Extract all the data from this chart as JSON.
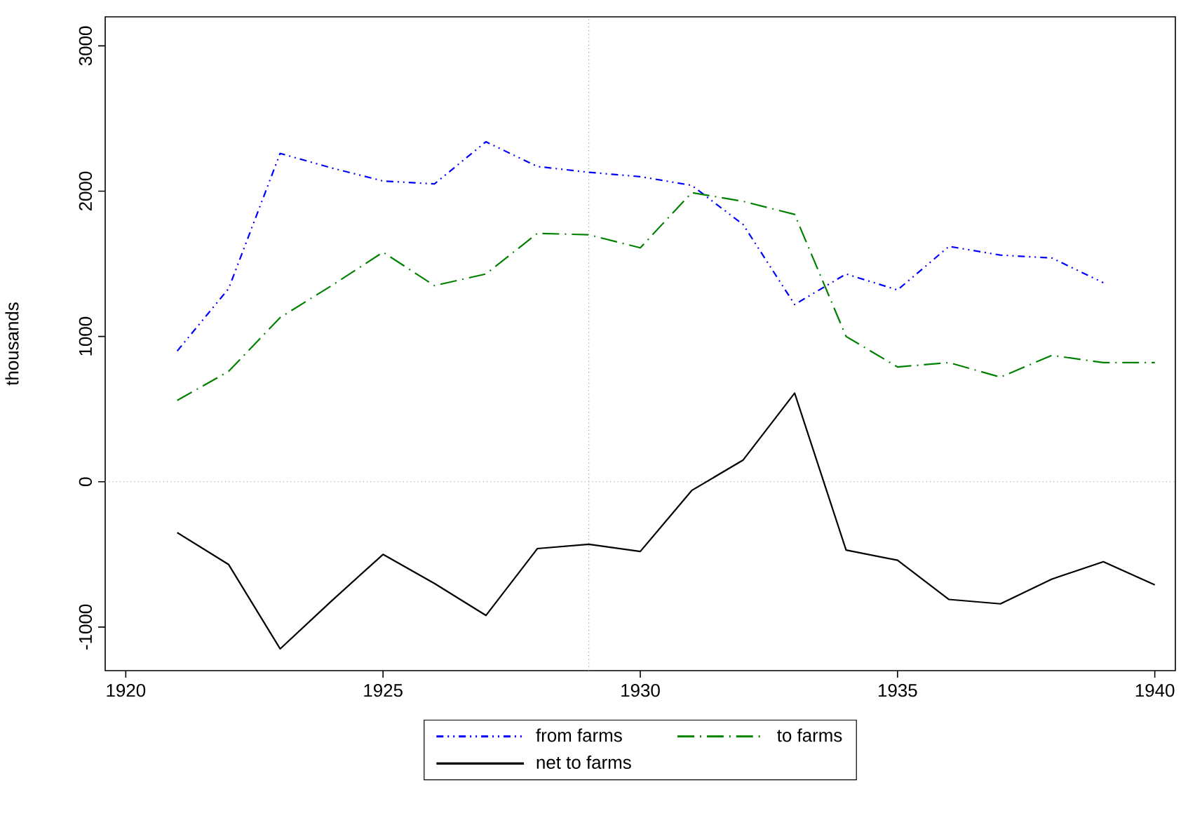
{
  "chart_data": {
    "type": "line",
    "ylabel": "thousands",
    "x": [
      1921,
      1922,
      1923,
      1924,
      1925,
      1926,
      1927,
      1928,
      1929,
      1930,
      1931,
      1932,
      1933,
      1934,
      1935,
      1936,
      1937,
      1938,
      1939,
      1940
    ],
    "series": [
      {
        "name": "from farms",
        "color": "#0000ff",
        "line_style": "dashdotdotted",
        "values": [
          900,
          1330,
          2260,
          2160,
          2070,
          2050,
          2340,
          2170,
          2130,
          2100,
          2040,
          1770,
          1220,
          1430,
          1320,
          1620,
          1560,
          1540,
          1370,
          null
        ]
      },
      {
        "name": "to farms",
        "color": "#008000",
        "line_style": "longdashdotted",
        "values": [
          560,
          760,
          1130,
          1350,
          1580,
          1350,
          1430,
          1710,
          1700,
          1610,
          1990,
          1930,
          1840,
          1000,
          790,
          820,
          720,
          870,
          820,
          820
        ]
      },
      {
        "name": "net to farms",
        "color": "#000000",
        "line_style": "solid",
        "values": [
          -350,
          -570,
          -1150,
          -820,
          -500,
          -700,
          -920,
          -460,
          -430,
          -480,
          -60,
          150,
          610,
          -470,
          -540,
          -810,
          -840,
          -670,
          -550,
          -710
        ]
      }
    ],
    "xlim": [
      1919.6,
      1940.4
    ],
    "ylim": [
      -1300,
      3200
    ],
    "xticks": [
      1920,
      1925,
      1930,
      1935,
      1940
    ],
    "yticks": [
      -1000,
      0,
      1000,
      2000,
      3000
    ],
    "ref_lines": [
      {
        "axis": "x",
        "value": 1929,
        "color": "#999999",
        "line_style": "dotted"
      },
      {
        "axis": "y",
        "value": 0,
        "color": "#999999",
        "line_style": "dotted"
      }
    ],
    "legend": "bottom",
    "grid": false
  }
}
